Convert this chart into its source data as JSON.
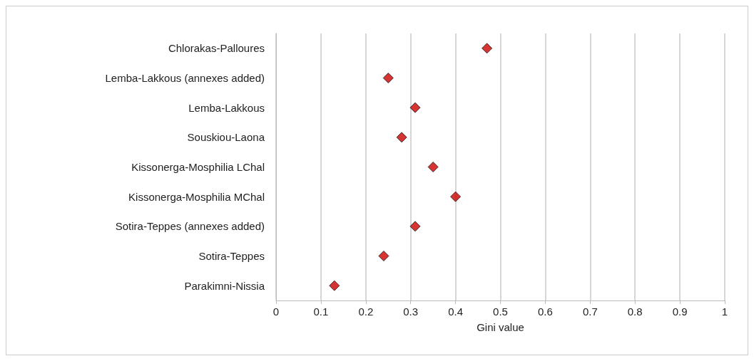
{
  "chart_data": {
    "type": "scatter",
    "orientation": "horizontal",
    "xlabel": "Gini value",
    "categories": [
      "Chlorakas-Palloures",
      "Lemba-Lakkous (annexes added)",
      "Lemba-Lakkous",
      "Souskiou-Laona",
      "Kissonerga-Mosphilia LChal",
      "Kissonerga-Mosphilia MChal",
      "Sotira-Teppes (annexes added)",
      "Sotira-Teppes",
      "Parakimni-Nissia"
    ],
    "values": [
      0.47,
      0.25,
      0.31,
      0.28,
      0.35,
      0.4,
      0.31,
      0.24,
      0.13
    ],
    "color": "#cc0000",
    "marker": "diamond",
    "xlim": [
      0,
      1
    ],
    "xticks": [
      0,
      0.1,
      0.2,
      0.3,
      0.4,
      0.5,
      0.6,
      0.7,
      0.8,
      0.9,
      1
    ],
    "grid": "x"
  }
}
